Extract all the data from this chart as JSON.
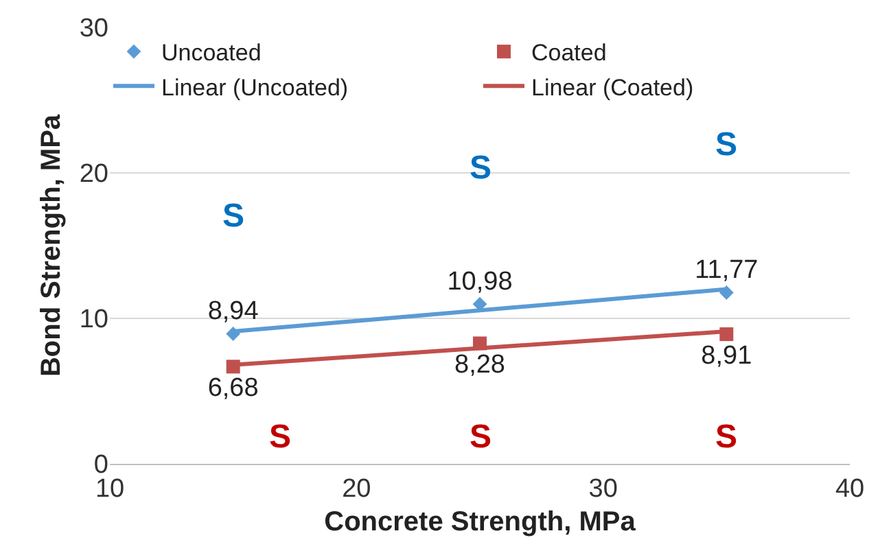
{
  "chart_data": {
    "type": "scatter",
    "xlabel": "Concrete Strength, MPa",
    "ylabel": "Bond Strength, MPa",
    "xlim": [
      10,
      40
    ],
    "xticks": [
      10,
      20,
      30,
      40
    ],
    "ylim": [
      0,
      30
    ],
    "yticks": [
      0,
      10,
      20,
      30
    ],
    "grid": "y",
    "legend": "top",
    "series": [
      {
        "name": "Uncoated",
        "marker": "diamond",
        "color": "#5b9bd5",
        "x": [
          15,
          25,
          35
        ],
        "values": [
          8.94,
          10.98,
          11.77
        ],
        "value_labels": [
          "8,94",
          "10,98",
          "11,77"
        ]
      },
      {
        "name": "Coated",
        "marker": "square",
        "color": "#c0504d",
        "x": [
          15,
          25,
          35
        ],
        "values": [
          6.68,
          8.28,
          8.91
        ],
        "value_labels": [
          "6,68",
          "8,28",
          "8,91"
        ]
      },
      {
        "name": "Linear (Uncoated)",
        "type": "line",
        "marker": "none",
        "color": "#5b9bd5",
        "x": [
          15,
          35
        ],
        "values": [
          9.1,
          12.0
        ]
      },
      {
        "name": "Linear (Coated)",
        "type": "line",
        "marker": "none",
        "color": "#c0504d",
        "x": [
          15,
          35
        ],
        "values": [
          6.8,
          9.1
        ]
      }
    ],
    "annotations": [
      "S",
      "S",
      "S",
      "S",
      "S",
      "S"
    ]
  }
}
